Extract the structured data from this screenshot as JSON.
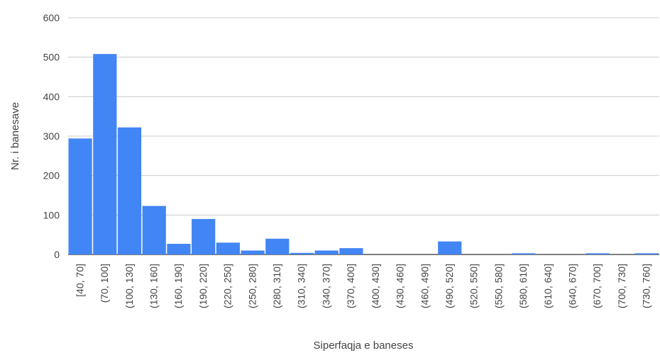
{
  "chart_data": {
    "type": "bar",
    "title": "",
    "xlabel": "Siperfaqja e baneses",
    "ylabel": "Nr. i banesave",
    "ylim": [
      0,
      600
    ],
    "yticks": [
      0,
      100,
      200,
      300,
      400,
      500,
      600
    ],
    "grid": true,
    "legend": "none",
    "bar_color": "#4285f4",
    "categories": [
      "[40, 70]",
      "(70, 100]",
      "(100, 130]",
      "(130, 160]",
      "(160, 190]",
      "(190, 220]",
      "(220, 250]",
      "(250, 280]",
      "(280, 310]",
      "(310, 340]",
      "(340, 370]",
      "(370, 400]",
      "(400, 430]",
      "(430, 460]",
      "(460, 490]",
      "(490, 520]",
      "(520, 550]",
      "(550, 580]",
      "(580, 610]",
      "(610, 640]",
      "(640, 670]",
      "(670, 700]",
      "(700, 730]",
      "(730, 760]"
    ],
    "values": [
      294,
      508,
      322,
      123,
      27,
      90,
      30,
      10,
      40,
      4,
      10,
      16,
      0,
      0,
      0,
      33,
      0,
      0,
      3,
      0,
      0,
      3,
      0,
      3
    ]
  }
}
